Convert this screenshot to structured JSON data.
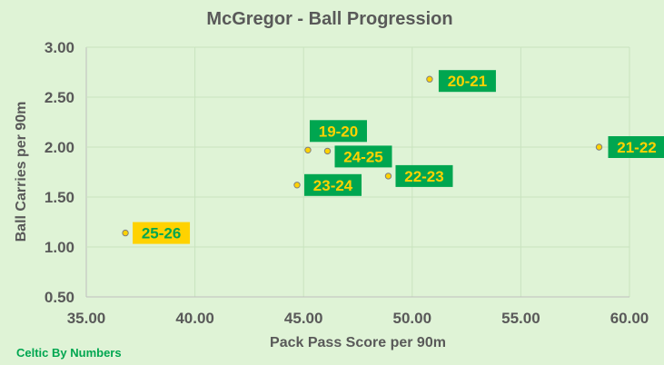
{
  "chart_data": {
    "type": "scatter",
    "title": "McGregor - Ball Progression",
    "xlabel": "Pack Pass Score per 90m",
    "ylabel": "Ball Carries per 90m",
    "xlim": [
      35,
      60
    ],
    "ylim": [
      0.5,
      3.0
    ],
    "x_ticks": [
      "35.00",
      "40.00",
      "45.00",
      "50.00",
      "55.00",
      "60.00"
    ],
    "y_ticks": [
      "0.50",
      "1.00",
      "1.50",
      "2.00",
      "2.50",
      "3.00"
    ],
    "grid": true,
    "points": [
      {
        "label": "19-20",
        "x": 45.2,
        "y": 1.97,
        "label_color": "#ffd200",
        "label_bg": "#00a650"
      },
      {
        "label": "20-21",
        "x": 50.8,
        "y": 2.68,
        "label_color": "#ffd200",
        "label_bg": "#00a650"
      },
      {
        "label": "21-22",
        "x": 58.6,
        "y": 2.0,
        "label_color": "#ffd200",
        "label_bg": "#00a650"
      },
      {
        "label": "22-23",
        "x": 48.9,
        "y": 1.71,
        "label_color": "#ffd200",
        "label_bg": "#00a650"
      },
      {
        "label": "23-24",
        "x": 44.7,
        "y": 1.62,
        "label_color": "#ffd200",
        "label_bg": "#00a650"
      },
      {
        "label": "24-25",
        "x": 46.1,
        "y": 1.96,
        "label_color": "#ffd200",
        "label_bg": "#00a650"
      },
      {
        "label": "25-26",
        "x": 36.8,
        "y": 1.14,
        "label_color": "#00a650",
        "label_bg": "#ffd200"
      }
    ],
    "marker_color": "#ffd200"
  },
  "credit": "Celtic By Numbers",
  "colors": {
    "background": "#dff3d6",
    "text": "#595959",
    "credit": "#00a650"
  }
}
